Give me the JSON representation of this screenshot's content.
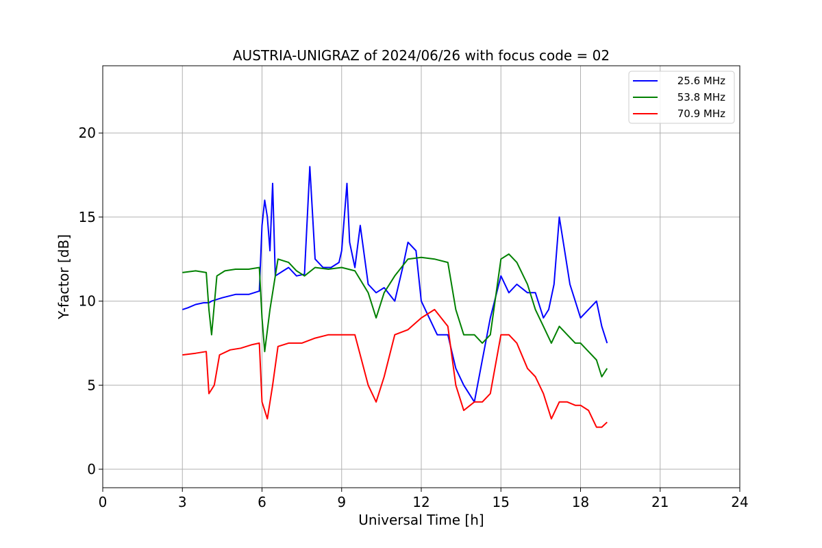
{
  "chart_data": {
    "type": "line",
    "title": "AUSTRIA-UNIGRAZ of 2024/06/26 with focus code = 02",
    "xlabel": "Universal Time [h]",
    "ylabel": "Y-factor [dB]",
    "xlim": [
      0,
      24
    ],
    "ylim": [
      -1.1,
      24
    ],
    "xticks": [
      0,
      3,
      6,
      9,
      12,
      15,
      18,
      21,
      24
    ],
    "yticks": [
      0,
      5,
      10,
      15,
      20
    ],
    "grid": true,
    "legend_position": "top-right",
    "series": [
      {
        "name": "25.6 MHz",
        "color": "#0000ff",
        "points": [
          [
            3.0,
            9.5
          ],
          [
            3.2,
            9.6
          ],
          [
            3.5,
            9.8
          ],
          [
            3.8,
            9.9
          ],
          [
            4.0,
            9.9
          ],
          [
            4.1,
            10.0
          ],
          [
            4.5,
            10.2
          ],
          [
            5.0,
            10.4
          ],
          [
            5.5,
            10.4
          ],
          [
            5.9,
            10.6
          ],
          [
            6.0,
            14.5
          ],
          [
            6.1,
            16.0
          ],
          [
            6.2,
            15.0
          ],
          [
            6.3,
            13.0
          ],
          [
            6.4,
            17.0
          ],
          [
            6.5,
            11.5
          ],
          [
            6.8,
            11.8
          ],
          [
            7.0,
            12.0
          ],
          [
            7.3,
            11.5
          ],
          [
            7.6,
            11.6
          ],
          [
            7.8,
            18.0
          ],
          [
            8.0,
            12.5
          ],
          [
            8.3,
            12.0
          ],
          [
            8.6,
            12.0
          ],
          [
            8.9,
            12.3
          ],
          [
            9.0,
            13.0
          ],
          [
            9.2,
            17.0
          ],
          [
            9.3,
            13.5
          ],
          [
            9.5,
            12.0
          ],
          [
            9.7,
            14.5
          ],
          [
            10.0,
            11.0
          ],
          [
            10.3,
            10.5
          ],
          [
            10.6,
            10.8
          ],
          [
            11.0,
            10.0
          ],
          [
            11.3,
            12.0
          ],
          [
            11.5,
            13.5
          ],
          [
            11.8,
            13.0
          ],
          [
            12.0,
            10.0
          ],
          [
            12.3,
            9.0
          ],
          [
            12.6,
            8.0
          ],
          [
            13.0,
            8.0
          ],
          [
            13.3,
            6.0
          ],
          [
            13.6,
            5.0
          ],
          [
            14.0,
            4.0
          ],
          [
            14.3,
            6.5
          ],
          [
            14.6,
            9.0
          ],
          [
            15.0,
            11.5
          ],
          [
            15.3,
            10.5
          ],
          [
            15.6,
            11.0
          ],
          [
            16.0,
            10.5
          ],
          [
            16.3,
            10.5
          ],
          [
            16.6,
            9.0
          ],
          [
            16.8,
            9.5
          ],
          [
            17.0,
            11.0
          ],
          [
            17.2,
            15.0
          ],
          [
            17.4,
            13.0
          ],
          [
            17.6,
            11.0
          ],
          [
            17.8,
            10.0
          ],
          [
            18.0,
            9.0
          ],
          [
            18.3,
            9.5
          ],
          [
            18.6,
            10.0
          ],
          [
            18.8,
            8.5
          ],
          [
            19.0,
            7.5
          ]
        ]
      },
      {
        "name": "53.8 MHz",
        "color": "#008000",
        "points": [
          [
            3.0,
            11.7
          ],
          [
            3.5,
            11.8
          ],
          [
            3.9,
            11.7
          ],
          [
            4.0,
            9.5
          ],
          [
            4.1,
            8.0
          ],
          [
            4.3,
            11.5
          ],
          [
            4.6,
            11.8
          ],
          [
            5.0,
            11.9
          ],
          [
            5.5,
            11.9
          ],
          [
            5.9,
            12.0
          ],
          [
            6.0,
            9.0
          ],
          [
            6.1,
            7.0
          ],
          [
            6.3,
            9.5
          ],
          [
            6.6,
            12.5
          ],
          [
            7.0,
            12.3
          ],
          [
            7.3,
            11.8
          ],
          [
            7.6,
            11.5
          ],
          [
            8.0,
            12.0
          ],
          [
            8.5,
            11.9
          ],
          [
            9.0,
            12.0
          ],
          [
            9.5,
            11.8
          ],
          [
            10.0,
            10.5
          ],
          [
            10.3,
            9.0
          ],
          [
            10.6,
            10.5
          ],
          [
            11.0,
            11.5
          ],
          [
            11.5,
            12.5
          ],
          [
            12.0,
            12.6
          ],
          [
            12.5,
            12.5
          ],
          [
            13.0,
            12.3
          ],
          [
            13.3,
            9.5
          ],
          [
            13.6,
            8.0
          ],
          [
            14.0,
            8.0
          ],
          [
            14.3,
            7.5
          ],
          [
            14.6,
            8.0
          ],
          [
            15.0,
            12.5
          ],
          [
            15.3,
            12.8
          ],
          [
            15.6,
            12.3
          ],
          [
            16.0,
            11.0
          ],
          [
            16.3,
            9.5
          ],
          [
            16.6,
            8.5
          ],
          [
            16.9,
            7.5
          ],
          [
            17.2,
            8.5
          ],
          [
            17.5,
            8.0
          ],
          [
            17.8,
            7.5
          ],
          [
            18.0,
            7.5
          ],
          [
            18.3,
            7.0
          ],
          [
            18.6,
            6.5
          ],
          [
            18.8,
            5.5
          ],
          [
            19.0,
            6.0
          ]
        ]
      },
      {
        "name": "70.9 MHz",
        "color": "#ff0000",
        "points": [
          [
            3.0,
            6.8
          ],
          [
            3.5,
            6.9
          ],
          [
            3.9,
            7.0
          ],
          [
            4.0,
            4.5
          ],
          [
            4.2,
            5.0
          ],
          [
            4.4,
            6.8
          ],
          [
            4.8,
            7.1
          ],
          [
            5.2,
            7.2
          ],
          [
            5.6,
            7.4
          ],
          [
            5.9,
            7.5
          ],
          [
            6.0,
            4.0
          ],
          [
            6.2,
            3.0
          ],
          [
            6.4,
            5.0
          ],
          [
            6.6,
            7.3
          ],
          [
            7.0,
            7.5
          ],
          [
            7.5,
            7.5
          ],
          [
            8.0,
            7.8
          ],
          [
            8.5,
            8.0
          ],
          [
            9.0,
            8.0
          ],
          [
            9.5,
            8.0
          ],
          [
            10.0,
            5.0
          ],
          [
            10.3,
            4.0
          ],
          [
            10.6,
            5.5
          ],
          [
            11.0,
            8.0
          ],
          [
            11.5,
            8.3
          ],
          [
            12.0,
            9.0
          ],
          [
            12.5,
            9.5
          ],
          [
            13.0,
            8.5
          ],
          [
            13.3,
            5.0
          ],
          [
            13.6,
            3.5
          ],
          [
            14.0,
            4.0
          ],
          [
            14.3,
            4.0
          ],
          [
            14.6,
            4.5
          ],
          [
            15.0,
            8.0
          ],
          [
            15.3,
            8.0
          ],
          [
            15.6,
            7.5
          ],
          [
            16.0,
            6.0
          ],
          [
            16.3,
            5.5
          ],
          [
            16.6,
            4.5
          ],
          [
            16.9,
            3.0
          ],
          [
            17.2,
            4.0
          ],
          [
            17.5,
            4.0
          ],
          [
            17.8,
            3.8
          ],
          [
            18.0,
            3.8
          ],
          [
            18.3,
            3.5
          ],
          [
            18.6,
            2.5
          ],
          [
            18.8,
            2.5
          ],
          [
            19.0,
            2.8
          ]
        ]
      }
    ]
  }
}
